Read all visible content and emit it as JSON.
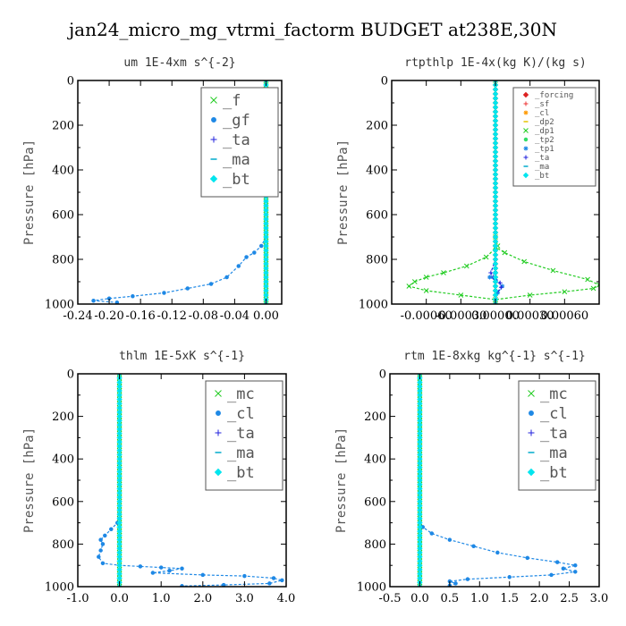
{
  "figure": {
    "title": "jan24_micro_mg_vtrmi_factorm  BUDGET at238E,30N"
  },
  "chart_data": [
    {
      "type": "line",
      "title": "um   1E-4xm s^{-2}",
      "ylabel": "Pressure [hPa]",
      "xlim": [
        -0.24,
        0.02
      ],
      "ylim": [
        1000,
        0
      ],
      "xticks": [
        -0.24,
        -0.2,
        -0.16,
        -0.12,
        -0.08,
        -0.04,
        0.0
      ],
      "xtick_labels": [
        "-0.24",
        "-0.20",
        "-0.16",
        "-0.12",
        "-0.08",
        "-0.04",
        "0.00"
      ],
      "yticks": [
        0,
        200,
        400,
        600,
        800,
        1000
      ],
      "ytick_labels": [
        "0",
        "200",
        "400",
        "600",
        "800",
        "1000"
      ],
      "legend": {
        "position": "top-right",
        "font_size": "large"
      },
      "series": [
        {
          "name": "_f",
          "color": "#22cc22",
          "marker": "x",
          "points": [
            [
              0.0,
              0
            ],
            [
              0.0,
              100
            ],
            [
              0.0,
              200
            ],
            [
              0.0,
              300
            ],
            [
              0.0,
              400
            ],
            [
              0.0,
              500
            ],
            [
              0.0,
              600
            ],
            [
              0.0,
              700
            ],
            [
              0.0,
              800
            ],
            [
              0.0,
              900
            ],
            [
              0.0,
              1000
            ]
          ]
        },
        {
          "name": "_gf",
          "color": "#1e88e5",
          "marker": "dot",
          "points": [
            [
              0.0,
              0
            ],
            [
              -0.002,
              100
            ],
            [
              -0.003,
              200
            ],
            [
              -0.002,
              300
            ],
            [
              -0.001,
              400
            ],
            [
              0.0,
              500
            ],
            [
              0.0,
              600
            ],
            [
              0.0,
              700
            ],
            [
              -0.006,
              740
            ],
            [
              -0.015,
              770
            ],
            [
              -0.025,
              790
            ],
            [
              -0.035,
              830
            ],
            [
              -0.05,
              880
            ],
            [
              -0.07,
              910
            ],
            [
              -0.1,
              930
            ],
            [
              -0.13,
              950
            ],
            [
              -0.17,
              965
            ],
            [
              -0.2,
              975
            ],
            [
              -0.22,
              985
            ],
            [
              -0.19,
              993
            ]
          ]
        },
        {
          "name": "_ta",
          "color": "#2222dd",
          "marker": "plus",
          "points": [
            [
              0.0,
              0
            ],
            [
              0.0,
              500
            ],
            [
              0.0,
              1000
            ]
          ]
        },
        {
          "name": "_ma",
          "color": "#00aacc",
          "marker": "dash",
          "points": [
            [
              0.0,
              0
            ],
            [
              0.0,
              500
            ],
            [
              0.0,
              1000
            ]
          ]
        },
        {
          "name": "_bt",
          "color": "#00e5ee",
          "marker": "diamond",
          "points": [
            [
              0.0,
              0
            ],
            [
              0.0,
              500
            ],
            [
              0.0,
              1000
            ]
          ]
        }
      ]
    },
    {
      "type": "line",
      "title": "rtpthlp  1E-4x(kg K)/(kg s)",
      "ylabel": "Pressure [hPa]",
      "xlim": [
        -0.0009,
        0.0009
      ],
      "ylim": [
        1000,
        0
      ],
      "xticks": [
        -0.0006,
        -0.0003,
        0.0,
        0.0003,
        0.0006
      ],
      "xtick_labels": [
        "-0.00060",
        "-0.00030",
        "0.00000",
        "0.00030",
        "0.00060"
      ],
      "yticks": [
        0,
        200,
        400,
        600,
        800,
        1000
      ],
      "ytick_labels": [
        "0",
        "200",
        "400",
        "600",
        "800",
        "1000"
      ],
      "legend": {
        "position": "top-right",
        "font_size": "small"
      },
      "series": [
        {
          "name": "_forcing",
          "color": "#dd2222",
          "marker": "diamond",
          "points": [
            [
              0.0,
              0
            ],
            [
              0.0,
              100
            ],
            [
              0.0,
              200
            ],
            [
              0.0,
              300
            ],
            [
              0.0,
              400
            ],
            [
              0.0,
              500
            ],
            [
              0.0,
              600
            ],
            [
              0.0,
              700
            ],
            [
              0.0,
              800
            ],
            [
              0.0,
              900
            ],
            [
              0.0,
              1000
            ]
          ]
        },
        {
          "name": "_sf",
          "color": "#ee3333",
          "marker": "plus",
          "points": [
            [
              0.0,
              0
            ],
            [
              0.0,
              1000
            ]
          ]
        },
        {
          "name": "_cl",
          "color": "#ff9900",
          "marker": "star",
          "points": [
            [
              0.0,
              0
            ],
            [
              0.0,
              1000
            ]
          ]
        },
        {
          "name": "_dp2",
          "color": "#e6c200",
          "marker": "dash",
          "points": [
            [
              0.0,
              0
            ],
            [
              0.0,
              1000
            ]
          ]
        },
        {
          "name": "_dp1",
          "color": "#22cc22",
          "marker": "x",
          "points": [
            [
              0.0,
              0
            ],
            [
              0.0,
              700
            ],
            [
              2e-05,
              740
            ],
            [
              -8e-05,
              790
            ],
            [
              -0.00025,
              830
            ],
            [
              -0.00045,
              860
            ],
            [
              -0.0006,
              880
            ],
            [
              -0.0007,
              900
            ],
            [
              -0.00075,
              920
            ],
            [
              -0.0006,
              940
            ],
            [
              -0.0003,
              960
            ],
            [
              0.0,
              980
            ],
            [
              0.0003,
              960
            ],
            [
              0.0006,
              945
            ],
            [
              0.00085,
              930
            ],
            [
              0.0009,
              915
            ],
            [
              0.0008,
              890
            ],
            [
              0.0005,
              850
            ],
            [
              0.00025,
              810
            ],
            [
              8e-05,
              770
            ],
            [
              0.0,
              745
            ],
            [
              0.0,
              1000
            ]
          ]
        },
        {
          "name": "_tp2",
          "color": "#33dd66",
          "marker": "dot",
          "points": [
            [
              0.0,
              0
            ],
            [
              0.0,
              1000
            ]
          ]
        },
        {
          "name": "_tp1",
          "color": "#1e88e5",
          "marker": "star",
          "points": [
            [
              0.0,
              0
            ],
            [
              0.0,
              860
            ],
            [
              -5e-05,
              880
            ],
            [
              0.0,
              890
            ],
            [
              6e-05,
              920
            ],
            [
              2e-05,
              950
            ],
            [
              0.0,
              1000
            ]
          ]
        },
        {
          "name": "_ta",
          "color": "#2222dd",
          "marker": "plus",
          "points": [
            [
              0.0,
              0
            ],
            [
              0.0,
              800
            ],
            [
              -4e-05,
              860
            ],
            [
              -2e-05,
              880
            ],
            [
              4e-05,
              905
            ],
            [
              5e-05,
              925
            ],
            [
              0.0,
              960
            ],
            [
              0.0,
              1000
            ]
          ]
        },
        {
          "name": "_ma",
          "color": "#00aacc",
          "marker": "dash",
          "points": [
            [
              0.0,
              0
            ],
            [
              0.0,
              1000
            ]
          ]
        },
        {
          "name": "_bt",
          "color": "#00e5ee",
          "marker": "diamond",
          "points": [
            [
              0.0,
              0
            ],
            [
              0.0,
              1000
            ]
          ]
        }
      ]
    },
    {
      "type": "line",
      "title": "thlm  1E-5xK s^{-1}",
      "ylabel": "Pressure [hPa]",
      "xlim": [
        -1.0,
        4.0
      ],
      "ylim": [
        1000,
        0
      ],
      "xticks": [
        -1.0,
        0.0,
        1.0,
        2.0,
        3.0,
        4.0
      ],
      "xtick_labels": [
        "-1.0",
        "0.0",
        "1.0",
        "2.0",
        "3.0",
        "4.0"
      ],
      "yticks": [
        0,
        200,
        400,
        600,
        800,
        1000
      ],
      "ytick_labels": [
        "0",
        "200",
        "400",
        "600",
        "800",
        "1000"
      ],
      "legend": {
        "position": "top-right",
        "font_size": "large"
      },
      "series": [
        {
          "name": "_mc",
          "color": "#22cc22",
          "marker": "x",
          "points": [
            [
              0.0,
              0
            ],
            [
              0.0,
              100
            ],
            [
              0.0,
              200
            ],
            [
              0.0,
              300
            ],
            [
              0.0,
              400
            ],
            [
              0.0,
              500
            ],
            [
              0.0,
              600
            ],
            [
              0.0,
              700
            ],
            [
              0.0,
              800
            ],
            [
              0.0,
              900
            ],
            [
              0.0,
              1000
            ]
          ]
        },
        {
          "name": "_cl",
          "color": "#1e88e5",
          "marker": "dot",
          "points": [
            [
              0.0,
              0
            ],
            [
              0.0,
              600
            ],
            [
              -0.05,
              700
            ],
            [
              -0.2,
              730
            ],
            [
              -0.35,
              760
            ],
            [
              -0.45,
              780
            ],
            [
              -0.4,
              800
            ],
            [
              -0.45,
              830
            ],
            [
              -0.5,
              860
            ],
            [
              -0.4,
              890
            ],
            [
              0.0,
              900
            ],
            [
              0.5,
              905
            ],
            [
              1.0,
              910
            ],
            [
              1.5,
              915
            ],
            [
              1.2,
              925
            ],
            [
              0.8,
              935
            ],
            [
              2.0,
              945
            ],
            [
              3.0,
              950
            ],
            [
              3.7,
              960
            ],
            [
              3.9,
              970
            ],
            [
              3.6,
              985
            ],
            [
              2.5,
              992
            ],
            [
              1.5,
              997
            ]
          ]
        },
        {
          "name": "_ta",
          "color": "#2222dd",
          "marker": "plus",
          "points": [
            [
              0.0,
              0
            ],
            [
              0.0,
              1000
            ]
          ]
        },
        {
          "name": "_ma",
          "color": "#00aacc",
          "marker": "dash",
          "points": [
            [
              0.0,
              0
            ],
            [
              0.0,
              1000
            ]
          ]
        },
        {
          "name": "_bt",
          "color": "#00e5ee",
          "marker": "diamond",
          "points": [
            [
              0.0,
              0
            ],
            [
              0.0,
              1000
            ]
          ]
        }
      ]
    },
    {
      "type": "line",
      "title": "rtm  1E-8xkg kg^{-1} s^{-1}",
      "ylabel": "Pressure [hPa]",
      "xlim": [
        -0.5,
        3.0
      ],
      "ylim": [
        1000,
        0
      ],
      "xticks": [
        -0.5,
        0.0,
        0.5,
        1.0,
        1.5,
        2.0,
        2.5,
        3.0
      ],
      "xtick_labels": [
        "-0.5",
        "0.0",
        "0.5",
        "1.0",
        "1.5",
        "2.0",
        "2.5",
        "3.0"
      ],
      "yticks": [
        0,
        200,
        400,
        600,
        800,
        1000
      ],
      "ytick_labels": [
        "0",
        "200",
        "400",
        "600",
        "800",
        "1000"
      ],
      "legend": {
        "position": "top-right",
        "font_size": "large"
      },
      "series": [
        {
          "name": "_mc",
          "color": "#22cc22",
          "marker": "x",
          "points": [
            [
              0.0,
              0
            ],
            [
              0.0,
              100
            ],
            [
              0.0,
              200
            ],
            [
              0.0,
              300
            ],
            [
              0.0,
              400
            ],
            [
              0.0,
              500
            ],
            [
              0.0,
              600
            ],
            [
              0.0,
              700
            ],
            [
              0.0,
              800
            ],
            [
              0.0,
              900
            ],
            [
              0.0,
              1000
            ]
          ]
        },
        {
          "name": "_cl",
          "color": "#1e88e5",
          "marker": "dot",
          "points": [
            [
              0.0,
              0
            ],
            [
              0.0,
              700
            ],
            [
              0.05,
              720
            ],
            [
              0.2,
              750
            ],
            [
              0.5,
              780
            ],
            [
              0.9,
              810
            ],
            [
              1.3,
              840
            ],
            [
              1.8,
              865
            ],
            [
              2.3,
              885
            ],
            [
              2.6,
              900
            ],
            [
              2.4,
              915
            ],
            [
              2.6,
              930
            ],
            [
              2.2,
              945
            ],
            [
              1.5,
              955
            ],
            [
              0.8,
              965
            ],
            [
              0.5,
              975
            ],
            [
              0.6,
              985
            ],
            [
              0.5,
              995
            ]
          ]
        },
        {
          "name": "_ta",
          "color": "#2222dd",
          "marker": "plus",
          "points": [
            [
              0.0,
              0
            ],
            [
              0.0,
              1000
            ]
          ]
        },
        {
          "name": "_ma",
          "color": "#00aacc",
          "marker": "dash",
          "points": [
            [
              0.0,
              0
            ],
            [
              0.0,
              1000
            ]
          ]
        },
        {
          "name": "_bt",
          "color": "#00e5ee",
          "marker": "diamond",
          "points": [
            [
              0.0,
              0
            ],
            [
              0.0,
              1000
            ]
          ]
        }
      ]
    }
  ]
}
